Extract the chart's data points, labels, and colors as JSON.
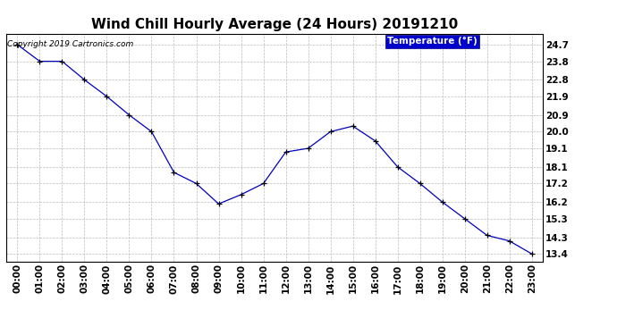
{
  "title": "Wind Chill Hourly Average (24 Hours) 20191210",
  "copyright_text": "Copyright 2019 Cartronics.com",
  "legend_label": "Temperature (°F)",
  "x_labels": [
    "00:00",
    "01:00",
    "02:00",
    "03:00",
    "04:00",
    "05:00",
    "06:00",
    "07:00",
    "08:00",
    "09:00",
    "10:00",
    "11:00",
    "12:00",
    "13:00",
    "14:00",
    "15:00",
    "16:00",
    "17:00",
    "18:00",
    "19:00",
    "20:00",
    "21:00",
    "22:00",
    "23:00"
  ],
  "y_values": [
    24.7,
    23.8,
    23.8,
    22.8,
    21.9,
    20.9,
    20.0,
    17.8,
    17.2,
    16.1,
    16.6,
    17.2,
    18.9,
    19.1,
    20.0,
    20.3,
    19.5,
    18.1,
    17.2,
    16.2,
    15.3,
    14.4,
    14.1,
    13.4
  ],
  "y_ticks": [
    13.4,
    14.3,
    15.3,
    16.2,
    17.2,
    18.1,
    19.1,
    20.0,
    20.9,
    21.9,
    22.8,
    23.8,
    24.7
  ],
  "y_min": 13.0,
  "y_max": 25.3,
  "line_color": "#0000bb",
  "marker_color": "#000000",
  "bg_color": "#ffffff",
  "grid_color": "#bbbbbb",
  "legend_bg": "#0000cc",
  "legend_text_color": "#ffffff",
  "title_fontsize": 11,
  "tick_fontsize": 7.5,
  "copyright_fontsize": 6.5,
  "legend_fontsize": 7.5
}
